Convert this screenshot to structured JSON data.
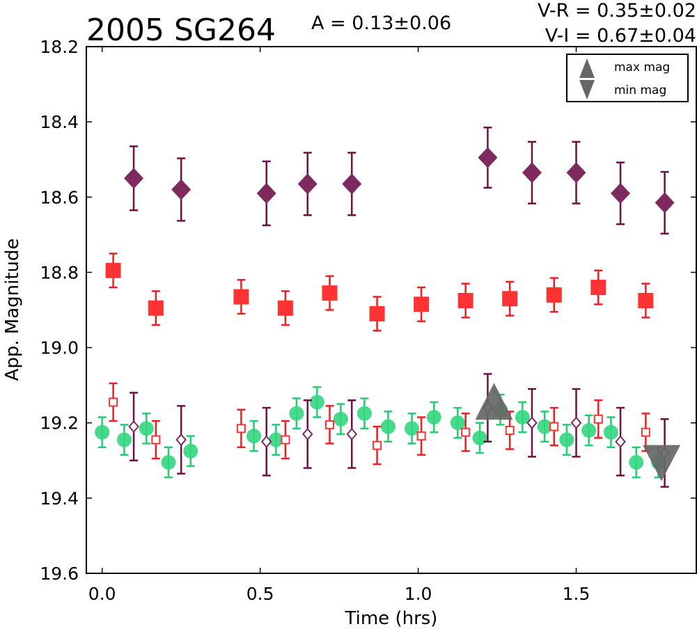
{
  "chart_data": {
    "type": "scatter",
    "title": "2005 SG264",
    "annotations": {
      "amplitude": "A  = 0.13±0.06",
      "v_r": "V-R = 0.35±0.02",
      "v_i": "V-I  = 0.67±0.04"
    },
    "xlabel": "Time (hrs)",
    "ylabel": "App. Magnitude",
    "xlim": [
      -0.05,
      1.88
    ],
    "ylim": [
      19.6,
      18.2
    ],
    "y_inverted": true,
    "xticks": [
      "0.0",
      "0.5",
      "1.0",
      "1.5"
    ],
    "xtick_values": [
      0.0,
      0.5,
      1.0,
      1.5
    ],
    "yticks": [
      "18.2",
      "18.4",
      "18.6",
      "18.8",
      "19.0",
      "19.2",
      "19.4",
      "19.6"
    ],
    "ytick_values": [
      18.2,
      18.4,
      18.6,
      18.8,
      19.0,
      19.2,
      19.4,
      19.6
    ],
    "grid": false,
    "legend": {
      "placement": "top-right",
      "entries": [
        {
          "label": "max mag",
          "marker": "triangle-up",
          "color": "#666666"
        },
        {
          "label": "min mag",
          "marker": "triangle-down",
          "color": "#666666"
        }
      ]
    },
    "colors": {
      "I": "#7f2a5f",
      "I_err": "#6e0f45",
      "R": "#ff3333",
      "R_err": "#e82020",
      "V": "#33d67f",
      "V_err": "#22cc72",
      "extrema": "#666666"
    },
    "series": [
      {
        "marker": "diamond-filled",
        "color_key": "I",
        "x": [
          0.1,
          0.25,
          0.52,
          0.65,
          0.79,
          1.22,
          1.36,
          1.5,
          1.64,
          1.78
        ],
        "y": [
          18.55,
          18.58,
          18.59,
          18.565,
          18.565,
          18.495,
          18.535,
          18.535,
          18.59,
          18.615
        ],
        "err": [
          0.085,
          0.083,
          0.085,
          0.083,
          0.083,
          0.08,
          0.082,
          0.082,
          0.082,
          0.082
        ]
      },
      {
        "marker": "square-filled",
        "color_key": "R",
        "x": [
          0.035,
          0.17,
          0.44,
          0.58,
          0.72,
          0.87,
          1.01,
          1.15,
          1.29,
          1.43,
          1.57,
          1.72
        ],
        "y": [
          18.795,
          18.895,
          18.865,
          18.895,
          18.855,
          18.91,
          18.885,
          18.875,
          18.87,
          18.86,
          18.84,
          18.875
        ],
        "err": [
          0.045,
          0.045,
          0.045,
          0.045,
          0.045,
          0.045,
          0.045,
          0.045,
          0.045,
          0.045,
          0.045,
          0.045
        ]
      },
      {
        "marker": "circle-filled",
        "color_key": "V",
        "x": [
          0.0,
          0.07,
          0.14,
          0.21,
          0.28,
          0.48,
          0.55,
          0.615,
          0.68,
          0.755,
          0.83,
          0.905,
          0.98,
          1.05,
          1.125,
          1.195,
          1.26,
          1.33,
          1.4,
          1.47,
          1.54,
          1.61,
          1.69,
          1.76
        ],
        "y": [
          19.225,
          19.245,
          19.215,
          19.305,
          19.275,
          19.235,
          19.245,
          19.175,
          19.145,
          19.19,
          19.175,
          19.21,
          19.215,
          19.185,
          19.2,
          19.24,
          19.165,
          19.185,
          19.21,
          19.245,
          19.22,
          19.225,
          19.305,
          19.305
        ],
        "err": [
          0.04,
          0.04,
          0.04,
          0.04,
          0.04,
          0.04,
          0.04,
          0.04,
          0.04,
          0.04,
          0.04,
          0.04,
          0.04,
          0.04,
          0.04,
          0.04,
          0.04,
          0.04,
          0.04,
          0.04,
          0.04,
          0.04,
          0.04,
          0.04
        ]
      },
      {
        "marker": "square-open",
        "color_key": "R",
        "x": [
          0.035,
          0.17,
          0.44,
          0.58,
          0.72,
          0.87,
          1.01,
          1.15,
          1.29,
          1.43,
          1.57,
          1.72
        ],
        "y": [
          19.145,
          19.245,
          19.215,
          19.245,
          19.205,
          19.26,
          19.235,
          19.225,
          19.22,
          19.21,
          19.19,
          19.225
        ],
        "err": [
          0.05,
          0.05,
          0.05,
          0.05,
          0.05,
          0.05,
          0.05,
          0.05,
          0.05,
          0.05,
          0.05,
          0.05
        ]
      },
      {
        "marker": "diamond-open",
        "color_key": "I",
        "x": [
          0.1,
          0.25,
          0.52,
          0.65,
          0.79,
          1.22,
          1.36,
          1.5,
          1.64,
          1.78
        ],
        "y": [
          19.21,
          19.245,
          19.25,
          19.23,
          19.23,
          19.16,
          19.2,
          19.2,
          19.25,
          19.28
        ],
        "err": [
          0.09,
          0.09,
          0.09,
          0.09,
          0.09,
          0.09,
          0.09,
          0.09,
          0.09,
          0.09
        ]
      }
    ],
    "extrema": [
      {
        "type": "max",
        "marker": "triangle-up",
        "x": 1.24,
        "y": 19.175
      },
      {
        "type": "min",
        "marker": "triangle-down",
        "x": 1.77,
        "y": 19.285
      }
    ]
  }
}
